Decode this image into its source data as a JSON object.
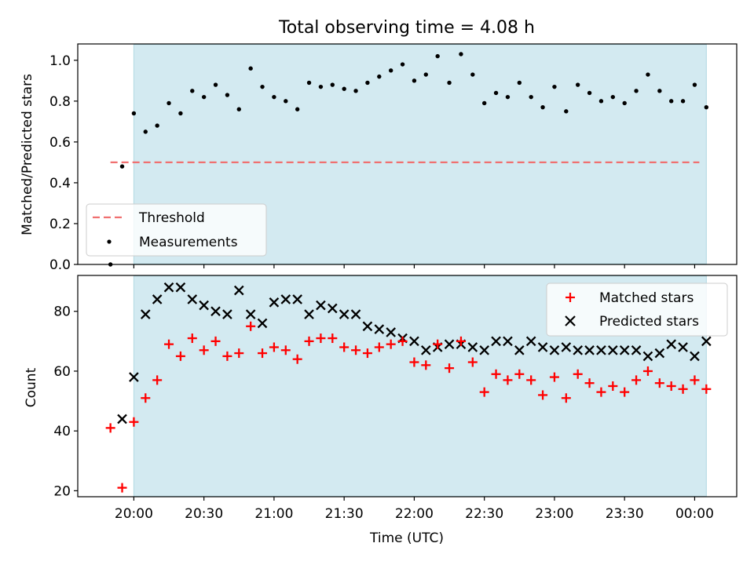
{
  "chart_data": [
    {
      "type": "scatter",
      "panel": "top",
      "title": "Total observing time = 4.08 h",
      "ylabel": "Matched/Predicted stars",
      "xlabel": "",
      "ylim": [
        0.0,
        1.08
      ],
      "yticks": [
        0.0,
        0.2,
        0.4,
        0.6,
        0.8,
        1.0
      ],
      "ytick_labels": [
        "0.0",
        "0.2",
        "0.4",
        "0.6",
        "0.8",
        "1.0"
      ],
      "legend_position": "lower-left",
      "shaded_interval_minutes": [
        0,
        245
      ],
      "threshold": {
        "name": "Threshold",
        "value": 0.5,
        "x_range_minutes": [
          -10,
          242
        ],
        "color": "#f07070"
      },
      "series": [
        {
          "name": "Measurements",
          "color": "#000000",
          "marker": "dot",
          "x_minutes": [
            -10,
            -5,
            0,
            5,
            10,
            15,
            20,
            25,
            30,
            35,
            40,
            45,
            50,
            55,
            60,
            65,
            70,
            75,
            80,
            85,
            90,
            95,
            100,
            105,
            110,
            115,
            120,
            125,
            130,
            135,
            140,
            145,
            150,
            155,
            160,
            165,
            170,
            175,
            180,
            185,
            190,
            195,
            200,
            205,
            210,
            215,
            220,
            225,
            230,
            235,
            240,
            245
          ],
          "values": [
            0.0,
            0.48,
            0.74,
            0.65,
            0.68,
            0.79,
            0.74,
            0.85,
            0.82,
            0.88,
            0.83,
            0.76,
            0.96,
            0.87,
            0.82,
            0.8,
            0.76,
            0.89,
            0.87,
            0.88,
            0.86,
            0.85,
            0.89,
            0.92,
            0.95,
            0.98,
            0.9,
            0.93,
            1.02,
            0.89,
            1.03,
            0.93,
            0.79,
            0.84,
            0.82,
            0.89,
            0.82,
            0.77,
            0.87,
            0.75,
            0.88,
            0.84,
            0.8,
            0.82,
            0.79,
            0.85,
            0.93,
            0.85,
            0.8,
            0.8,
            0.88,
            0.77
          ]
        }
      ]
    },
    {
      "type": "scatter",
      "panel": "bottom",
      "title": "",
      "ylabel": "Count",
      "xlabel": "Time (UTC)",
      "ylim": [
        18,
        92
      ],
      "yticks": [
        20,
        40,
        60,
        80
      ],
      "ytick_labels": [
        "20",
        "40",
        "60",
        "80"
      ],
      "xlim_minutes": [
        -24,
        258
      ],
      "xticks_minutes": [
        0,
        30,
        60,
        90,
        120,
        150,
        180,
        210,
        240
      ],
      "xtick_labels": [
        "20:00",
        "20:30",
        "21:00",
        "21:30",
        "22:00",
        "22:30",
        "23:00",
        "23:30",
        "00:00"
      ],
      "legend_position": "upper-right",
      "shaded_interval_minutes": [
        0,
        245
      ],
      "series": [
        {
          "name": "Matched stars",
          "color": "#ff0000",
          "marker": "plus",
          "x_minutes": [
            -10,
            -5,
            0,
            5,
            10,
            15,
            20,
            25,
            30,
            35,
            40,
            45,
            50,
            55,
            60,
            65,
            70,
            75,
            80,
            85,
            90,
            95,
            100,
            105,
            110,
            115,
            120,
            125,
            130,
            135,
            140,
            145,
            150,
            155,
            160,
            165,
            170,
            175,
            180,
            185,
            190,
            195,
            200,
            205,
            210,
            215,
            220,
            225,
            230,
            235,
            240,
            245
          ],
          "values": [
            41,
            21,
            43,
            51,
            57,
            69,
            65,
            71,
            67,
            70,
            65,
            66,
            75,
            66,
            68,
            67,
            64,
            70,
            71,
            71,
            68,
            67,
            66,
            68,
            69,
            70,
            63,
            62,
            69,
            61,
            70,
            63,
            53,
            59,
            57,
            59,
            57,
            52,
            58,
            51,
            59,
            56,
            53,
            55,
            53,
            57,
            60,
            56,
            55,
            54,
            57,
            54
          ]
        },
        {
          "name": "Predicted stars",
          "color": "#000000",
          "marker": "x",
          "x_minutes": [
            -5,
            0,
            5,
            10,
            15,
            20,
            25,
            30,
            35,
            40,
            45,
            50,
            55,
            60,
            65,
            70,
            75,
            80,
            85,
            90,
            95,
            100,
            105,
            110,
            115,
            120,
            125,
            130,
            135,
            140,
            145,
            150,
            155,
            160,
            165,
            170,
            175,
            180,
            185,
            190,
            195,
            200,
            205,
            210,
            215,
            220,
            225,
            230,
            235,
            240,
            245
          ],
          "values": [
            44,
            58,
            79,
            84,
            88,
            88,
            84,
            82,
            80,
            79,
            87,
            79,
            76,
            83,
            84,
            84,
            79,
            82,
            81,
            79,
            79,
            75,
            74,
            73,
            71,
            70,
            67,
            68,
            69,
            69,
            68,
            67,
            70,
            70,
            67,
            70,
            68,
            67,
            68,
            67,
            67,
            67,
            67,
            67,
            67,
            65,
            66,
            69,
            68,
            65,
            70
          ]
        }
      ]
    }
  ]
}
